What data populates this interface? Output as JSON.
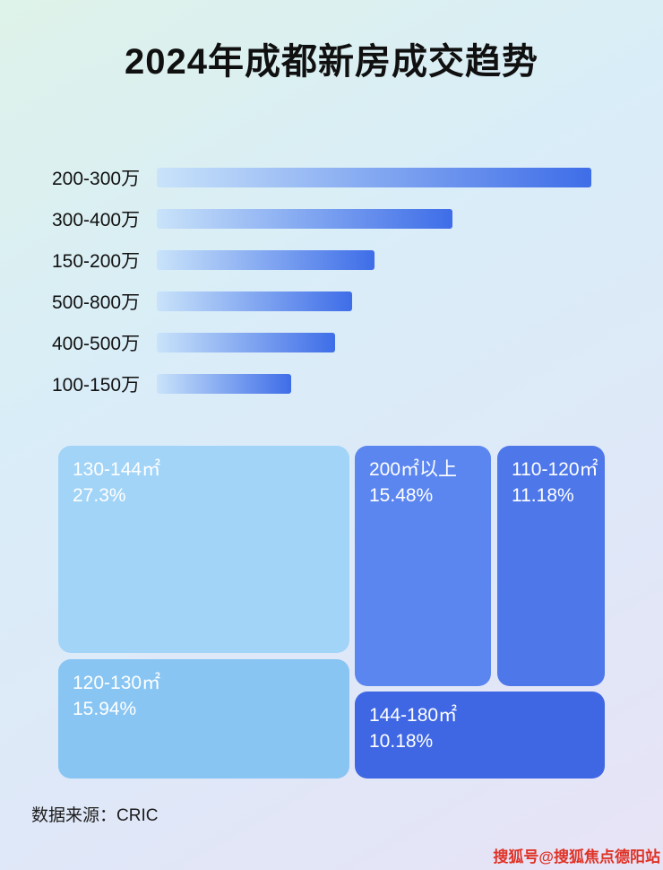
{
  "title": "2024年成都新房成交趋势",
  "chart_data": [
    {
      "type": "bar",
      "orientation": "horizontal",
      "title": "2024年成都新房成交趋势",
      "categories": [
        "200-300万",
        "300-400万",
        "150-200万",
        "500-800万",
        "400-500万",
        "100-150万"
      ],
      "values": [
        100,
        68,
        50,
        45,
        41,
        31
      ],
      "value_note": "relative bar lengths as % of longest bar; no numeric labels shown in image",
      "xlabel": "",
      "ylabel": "",
      "grid": false,
      "legend": false,
      "bar_color_start": "#c9e3fa",
      "bar_color_end": "#3e6de8"
    },
    {
      "type": "treemap",
      "items": [
        {
          "label": "130-144㎡",
          "value": "27.3%",
          "color": "#a2d4f7"
        },
        {
          "label": "120-130㎡",
          "value": "15.94%",
          "color": "#88c5f3"
        },
        {
          "label": "200㎡以上",
          "value": "15.48%",
          "color": "#5b86f0"
        },
        {
          "label": "110-120㎡",
          "value": "11.18%",
          "color": "#4e77ea"
        },
        {
          "label": "144-180㎡",
          "value": "10.18%",
          "color": "#3f67e3"
        }
      ]
    }
  ],
  "footer": {
    "source": "数据来源：CRIC"
  },
  "watermark": "搜狐号@搜狐焦点德阳站"
}
